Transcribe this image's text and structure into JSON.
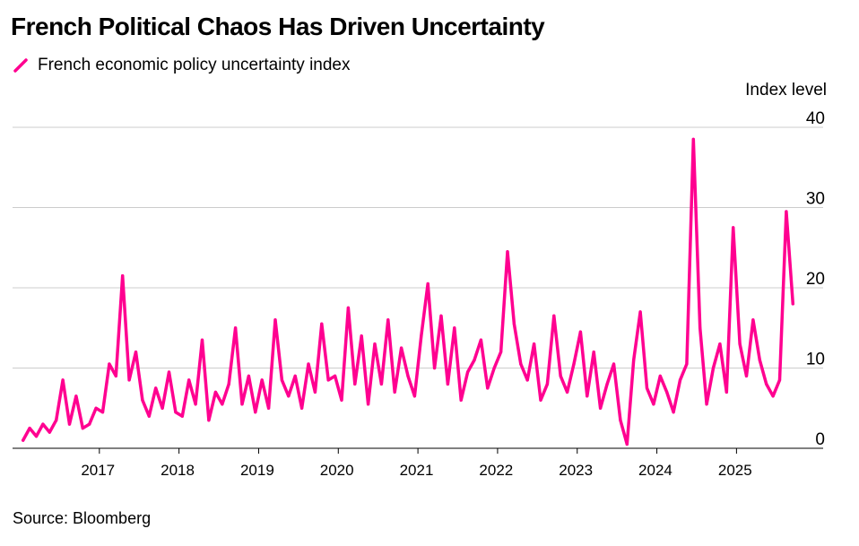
{
  "header": {
    "title": "French Political Chaos Has Driven Uncertainty"
  },
  "legend": {
    "label": "French economic policy uncertainty index",
    "color": "#ff0090"
  },
  "axis": {
    "unit_label": "Index level"
  },
  "footer": {
    "source": "Source: Bloomberg"
  },
  "chart_data": {
    "type": "line",
    "title": "French Political Chaos Has Driven Uncertainty",
    "ylabel": "Index level",
    "ylim": [
      0,
      40
    ],
    "y_ticks": [
      0,
      10,
      20,
      30,
      40
    ],
    "x_ticks": [
      "2017",
      "2018",
      "2019",
      "2020",
      "2021",
      "2022",
      "2023",
      "2024",
      "2025"
    ],
    "xlim": [
      "2016-01",
      "2025-09"
    ],
    "grid": true,
    "legend_position": "top-left",
    "series": [
      {
        "name": "French economic policy uncertainty index",
        "color": "#ff0090",
        "x": [
          "2016-01",
          "2016-02",
          "2016-03",
          "2016-04",
          "2016-05",
          "2016-06",
          "2016-07",
          "2016-08",
          "2016-09",
          "2016-10",
          "2016-11",
          "2016-12",
          "2017-01",
          "2017-02",
          "2017-03",
          "2017-04",
          "2017-05",
          "2017-06",
          "2017-07",
          "2017-08",
          "2017-09",
          "2017-10",
          "2017-11",
          "2017-12",
          "2018-01",
          "2018-02",
          "2018-03",
          "2018-04",
          "2018-05",
          "2018-06",
          "2018-07",
          "2018-08",
          "2018-09",
          "2018-10",
          "2018-11",
          "2018-12",
          "2019-01",
          "2019-02",
          "2019-03",
          "2019-04",
          "2019-05",
          "2019-06",
          "2019-07",
          "2019-08",
          "2019-09",
          "2019-10",
          "2019-11",
          "2019-12",
          "2020-01",
          "2020-02",
          "2020-03",
          "2020-04",
          "2020-05",
          "2020-06",
          "2020-07",
          "2020-08",
          "2020-09",
          "2020-10",
          "2020-11",
          "2020-12",
          "2021-01",
          "2021-02",
          "2021-03",
          "2021-04",
          "2021-05",
          "2021-06",
          "2021-07",
          "2021-08",
          "2021-09",
          "2021-10",
          "2021-11",
          "2021-12",
          "2022-01",
          "2022-02",
          "2022-03",
          "2022-04",
          "2022-05",
          "2022-06",
          "2022-07",
          "2022-08",
          "2022-09",
          "2022-10",
          "2022-11",
          "2022-12",
          "2023-01",
          "2023-02",
          "2023-03",
          "2023-04",
          "2023-05",
          "2023-06",
          "2023-07",
          "2023-08",
          "2023-09",
          "2023-10",
          "2023-11",
          "2023-12",
          "2024-01",
          "2024-02",
          "2024-03",
          "2024-04",
          "2024-05",
          "2024-06",
          "2024-07",
          "2024-08",
          "2024-09",
          "2024-10",
          "2024-11",
          "2024-12",
          "2025-01",
          "2025-02",
          "2025-03",
          "2025-04",
          "2025-05",
          "2025-06",
          "2025-07",
          "2025-08",
          "2025-09"
        ],
        "values": [
          1.0,
          2.5,
          1.5,
          3.0,
          2.0,
          3.5,
          8.5,
          3.0,
          6.5,
          2.5,
          3.0,
          5.0,
          4.5,
          10.5,
          9.0,
          21.5,
          8.5,
          12.0,
          6.0,
          4.0,
          7.5,
          5.0,
          9.5,
          4.5,
          4.0,
          8.5,
          5.5,
          13.5,
          3.5,
          7.0,
          5.5,
          8.0,
          15.0,
          5.5,
          9.0,
          4.5,
          8.5,
          5.0,
          16.0,
          8.5,
          6.5,
          9.0,
          5.0,
          10.5,
          7.0,
          15.5,
          8.5,
          9.0,
          6.0,
          17.5,
          8.0,
          14.0,
          5.5,
          13.0,
          8.0,
          16.0,
          7.0,
          12.5,
          9.0,
          6.5,
          14.0,
          20.5,
          10.0,
          16.5,
          8.0,
          15.0,
          6.0,
          9.5,
          11.0,
          13.5,
          7.5,
          10.0,
          12.0,
          24.5,
          15.5,
          10.5,
          8.5,
          13.0,
          6.0,
          8.0,
          16.5,
          9.0,
          7.0,
          10.5,
          14.5,
          6.5,
          12.0,
          5.0,
          8.0,
          10.5,
          3.5,
          0.5,
          11.0,
          17.0,
          7.5,
          5.5,
          9.0,
          7.0,
          4.5,
          8.5,
          10.5,
          38.5,
          15.0,
          5.5,
          10.0,
          13.0,
          7.0,
          27.5,
          13.0,
          9.0,
          16.0,
          11.0,
          8.0,
          6.5,
          8.5,
          29.5,
          18.0
        ]
      }
    ]
  }
}
